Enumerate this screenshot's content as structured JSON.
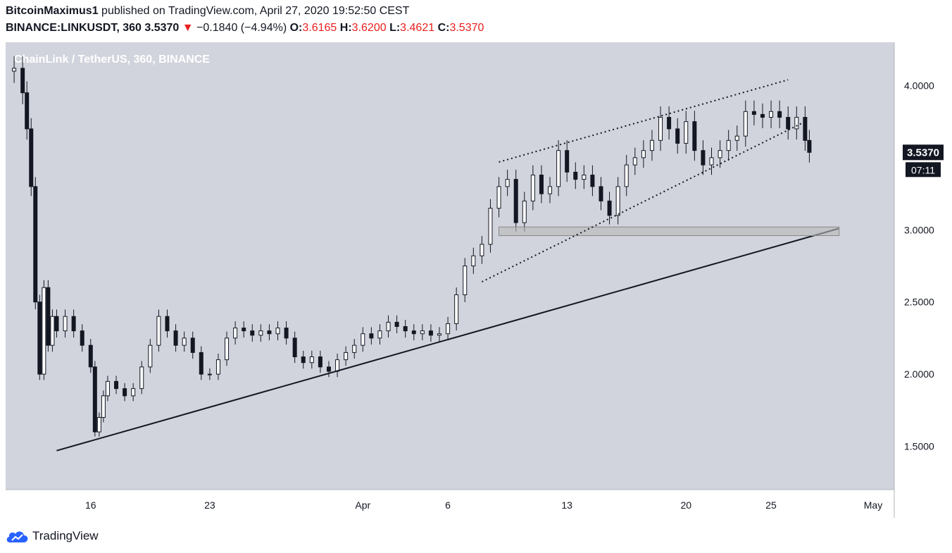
{
  "header": {
    "author": "BitcoinMaximus1",
    "published": "published on TradingView.com, April 27, 2020 19:52:50 CEST",
    "symbol": "BINANCE:LINKUSDT, 360",
    "last": "3.5370",
    "arrow": "▼",
    "change": "−0.1840 (−4.94%)",
    "o_label": "O:",
    "o_value": "3.6165",
    "h_label": "H:",
    "h_value": "3.6200",
    "l_label": "L:",
    "l_value": "3.4621",
    "c_label": "C:",
    "c_value": "3.5370"
  },
  "footer": {
    "brand": "TradingView",
    "icon": "tradingview-cloud-icon"
  },
  "colors": {
    "background": "#d1d4dc",
    "axis_bg": "#ffffff",
    "candle_up": "#ffffff",
    "candle_down": "#131722",
    "line": "#131722",
    "down_text": "#e91e1e",
    "zone": "#b8b8b8"
  },
  "chart_data": {
    "type": "candlestick",
    "title": "ChainLink / TetherUS, 360, BINANCE",
    "timeframe": "360",
    "x_ticks": [
      "16",
      "23",
      "Apr",
      "6",
      "13",
      "20",
      "25",
      "May"
    ],
    "x_tick_dates": [
      "2020-03-16",
      "2020-03-23",
      "2020-04-01",
      "2020-04-06",
      "2020-04-13",
      "2020-04-20",
      "2020-04-25",
      "2020-05-01"
    ],
    "y_ticks": [
      "1.5000",
      "2.0000",
      "2.5000",
      "3.0000",
      "4.0000"
    ],
    "y_range": [
      1.2,
      4.3
    ],
    "x_range": [
      "2020-03-11",
      "2020-05-01"
    ],
    "last_price_label": "3.5370",
    "countdown_label": "07:11",
    "candle_points": [
      [
        "2020-03-11",
        4.1
      ],
      [
        "2020-03-11T12:00",
        4.12
      ],
      [
        "2020-03-12",
        3.95
      ],
      [
        "2020-03-12T06:00",
        3.7
      ],
      [
        "2020-03-12T12:00",
        3.3
      ],
      [
        "2020-03-12T18:00",
        2.5
      ],
      [
        "2020-03-13",
        2.0
      ],
      [
        "2020-03-13T06:00",
        2.6
      ],
      [
        "2020-03-13T12:00",
        2.2
      ],
      [
        "2020-03-13T18:00",
        2.4
      ],
      [
        "2020-03-14",
        2.3
      ],
      [
        "2020-03-14T12:00",
        2.4
      ],
      [
        "2020-03-15",
        2.3
      ],
      [
        "2020-03-15T12:00",
        2.2
      ],
      [
        "2020-03-16",
        2.05
      ],
      [
        "2020-03-16T06:00",
        1.6
      ],
      [
        "2020-03-16T12:00",
        1.7
      ],
      [
        "2020-03-16T18:00",
        1.85
      ],
      [
        "2020-03-17",
        1.95
      ],
      [
        "2020-03-17T12:00",
        1.9
      ],
      [
        "2020-03-18",
        1.85
      ],
      [
        "2020-03-18T12:00",
        1.9
      ],
      [
        "2020-03-19",
        2.05
      ],
      [
        "2020-03-19T12:00",
        2.2
      ],
      [
        "2020-03-20",
        2.4
      ],
      [
        "2020-03-20T12:00",
        2.3
      ],
      [
        "2020-03-21",
        2.2
      ],
      [
        "2020-03-21T12:00",
        2.25
      ],
      [
        "2020-03-22",
        2.15
      ],
      [
        "2020-03-22T12:00",
        2.0
      ],
      [
        "2020-03-23",
        2.0
      ],
      [
        "2020-03-23T12:00",
        2.1
      ],
      [
        "2020-03-24",
        2.25
      ],
      [
        "2020-03-24T12:00",
        2.32
      ],
      [
        "2020-03-25",
        2.3
      ],
      [
        "2020-03-25T12:00",
        2.27
      ],
      [
        "2020-03-26",
        2.3
      ],
      [
        "2020-03-26T12:00",
        2.28
      ],
      [
        "2020-03-27",
        2.32
      ],
      [
        "2020-03-27T12:00",
        2.25
      ],
      [
        "2020-03-28",
        2.12
      ],
      [
        "2020-03-28T12:00",
        2.08
      ],
      [
        "2020-03-29",
        2.12
      ],
      [
        "2020-03-29T12:00",
        2.05
      ],
      [
        "2020-03-30",
        2.02
      ],
      [
        "2020-03-30T12:00",
        2.1
      ],
      [
        "2020-03-31",
        2.15
      ],
      [
        "2020-03-31T12:00",
        2.2
      ],
      [
        "2020-04-01",
        2.28
      ],
      [
        "2020-04-01T12:00",
        2.25
      ],
      [
        "2020-04-02",
        2.3
      ],
      [
        "2020-04-02T12:00",
        2.36
      ],
      [
        "2020-04-03",
        2.33
      ],
      [
        "2020-04-03T12:00",
        2.3
      ],
      [
        "2020-04-04",
        2.28
      ],
      [
        "2020-04-04T12:00",
        2.3
      ],
      [
        "2020-04-05",
        2.27
      ],
      [
        "2020-04-05T12:00",
        2.28
      ],
      [
        "2020-04-06",
        2.35
      ],
      [
        "2020-04-06T12:00",
        2.55
      ],
      [
        "2020-04-07",
        2.75
      ],
      [
        "2020-04-07T12:00",
        2.82
      ],
      [
        "2020-04-08",
        2.9
      ],
      [
        "2020-04-08T12:00",
        3.15
      ],
      [
        "2020-04-09",
        3.3
      ],
      [
        "2020-04-09T12:00",
        3.35
      ],
      [
        "2020-04-10",
        3.05
      ],
      [
        "2020-04-10T12:00",
        3.2
      ],
      [
        "2020-04-11",
        3.38
      ],
      [
        "2020-04-11T12:00",
        3.25
      ],
      [
        "2020-04-12",
        3.3
      ],
      [
        "2020-04-12T12:00",
        3.55
      ],
      [
        "2020-04-13",
        3.4
      ],
      [
        "2020-04-13T12:00",
        3.35
      ],
      [
        "2020-04-14",
        3.38
      ],
      [
        "2020-04-14T12:00",
        3.3
      ],
      [
        "2020-04-15",
        3.2
      ],
      [
        "2020-04-15T12:00",
        3.1
      ],
      [
        "2020-04-16",
        3.3
      ],
      [
        "2020-04-16T12:00",
        3.45
      ],
      [
        "2020-04-17",
        3.5
      ],
      [
        "2020-04-17T12:00",
        3.55
      ],
      [
        "2020-04-18",
        3.62
      ],
      [
        "2020-04-18T12:00",
        3.78
      ],
      [
        "2020-04-19",
        3.7
      ],
      [
        "2020-04-19T12:00",
        3.6
      ],
      [
        "2020-04-20",
        3.75
      ],
      [
        "2020-04-20T12:00",
        3.55
      ],
      [
        "2020-04-21",
        3.45
      ],
      [
        "2020-04-21T12:00",
        3.5
      ],
      [
        "2020-04-22",
        3.55
      ],
      [
        "2020-04-22T12:00",
        3.62
      ],
      [
        "2020-04-23",
        3.65
      ],
      [
        "2020-04-23T12:00",
        3.82
      ],
      [
        "2020-04-24",
        3.8
      ],
      [
        "2020-04-24T12:00",
        3.78
      ],
      [
        "2020-04-25",
        3.82
      ],
      [
        "2020-04-25T12:00",
        3.78
      ],
      [
        "2020-04-26",
        3.7
      ],
      [
        "2020-04-26T12:00",
        3.78
      ],
      [
        "2020-04-27",
        3.62
      ],
      [
        "2020-04-27T06:00",
        3.537
      ]
    ]
  }
}
